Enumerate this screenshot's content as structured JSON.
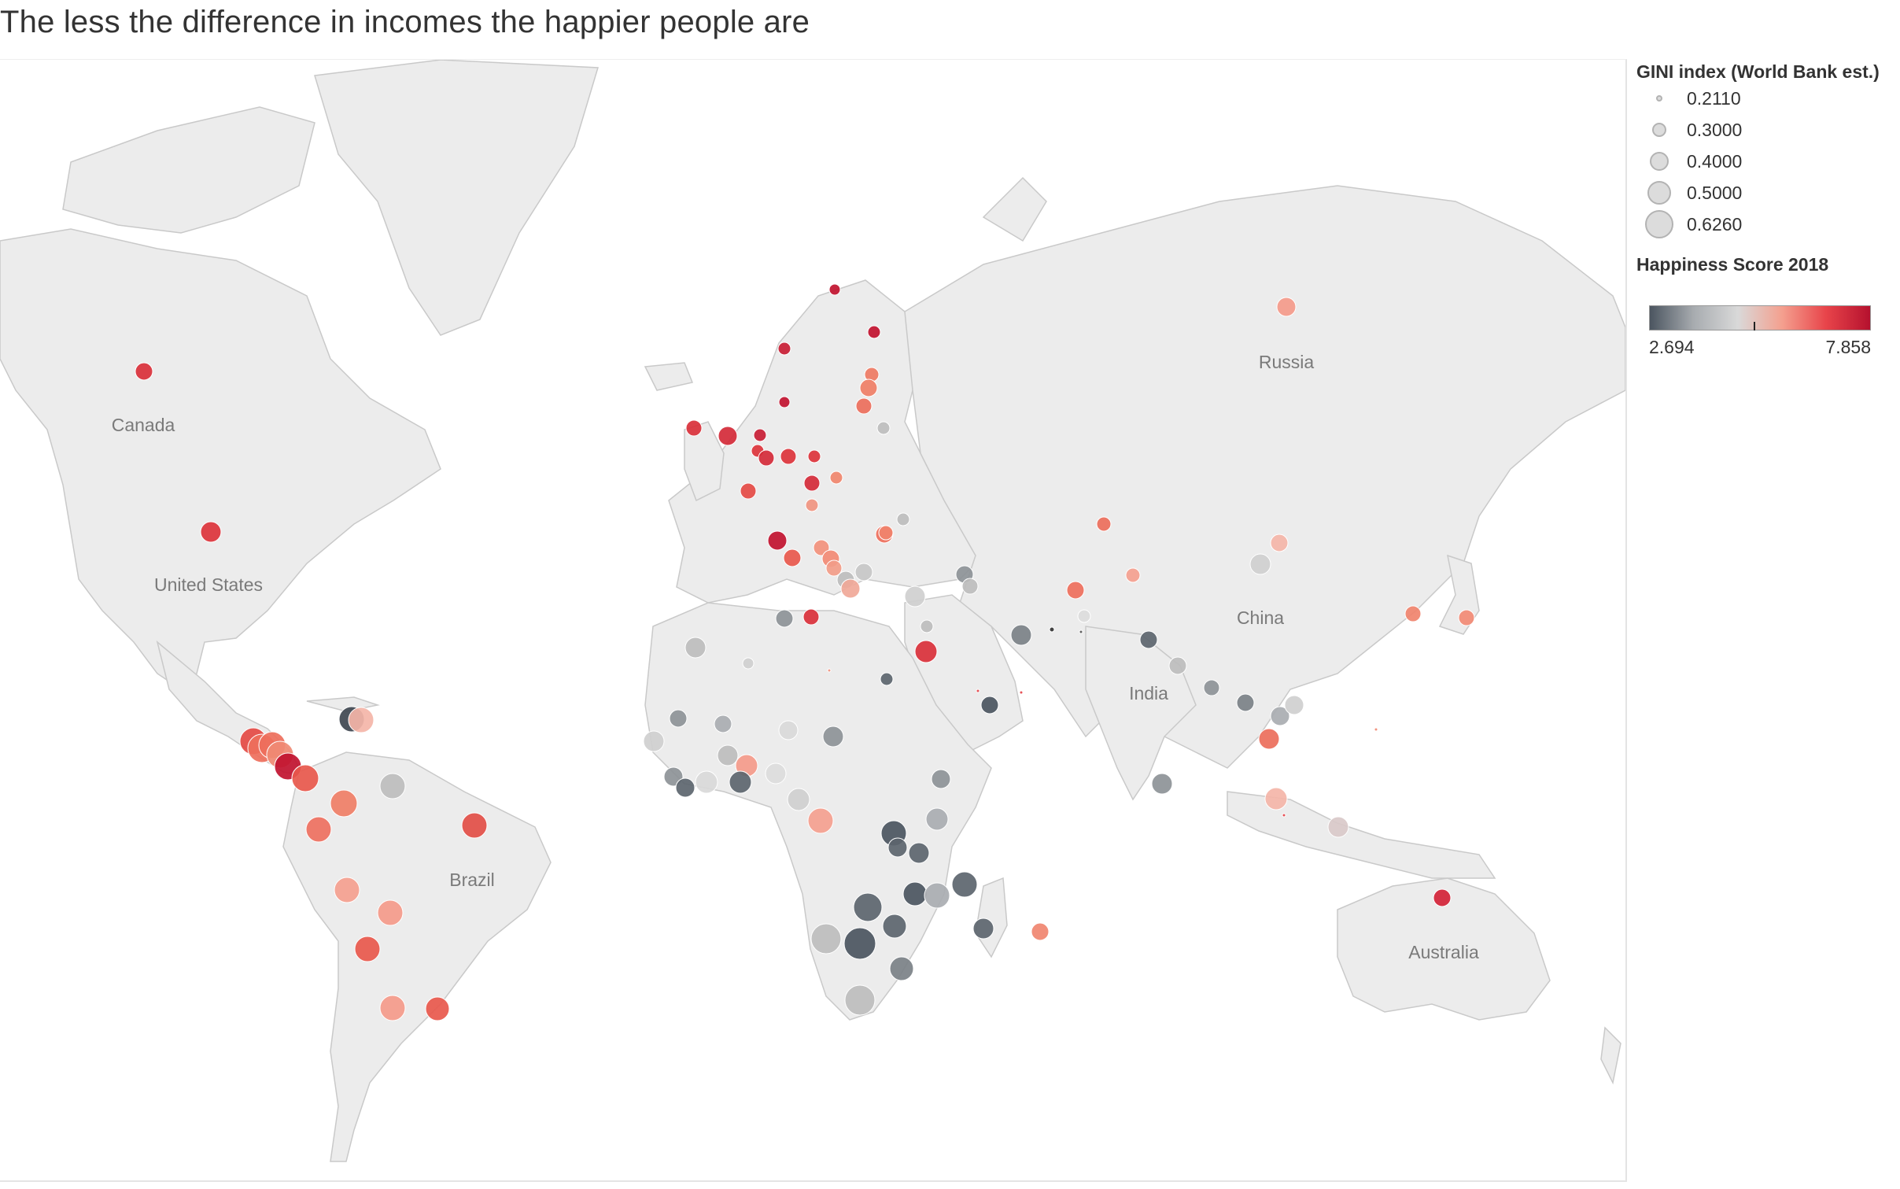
{
  "title": "The less the difference in incomes the happier people are",
  "map": {
    "country_labels": [
      "Canada",
      "United States",
      "Brazil",
      "Russia",
      "China",
      "India",
      "Australia"
    ],
    "land_color": "#ececec",
    "border_color": "#c8c8c8"
  },
  "legend": {
    "size_title": "GINI index (World Bank est.)",
    "size_items": [
      {
        "label": "0.2110",
        "value": 0.211
      },
      {
        "label": "0.3000",
        "value": 0.3
      },
      {
        "label": "0.4000",
        "value": 0.4
      },
      {
        "label": "0.5000",
        "value": 0.5
      },
      {
        "label": "0.6260",
        "value": 0.626
      }
    ],
    "color_title": "Happiness Score 2018",
    "color_min_label": "2.694",
    "color_max_label": "7.858",
    "color_min": 2.694,
    "color_max": 7.858,
    "ramp_colors": [
      "#4b5560",
      "#a8acb0",
      "#d9d9d9",
      "#f4a08f",
      "#e8444a",
      "#b5112e"
    ]
  }
}
